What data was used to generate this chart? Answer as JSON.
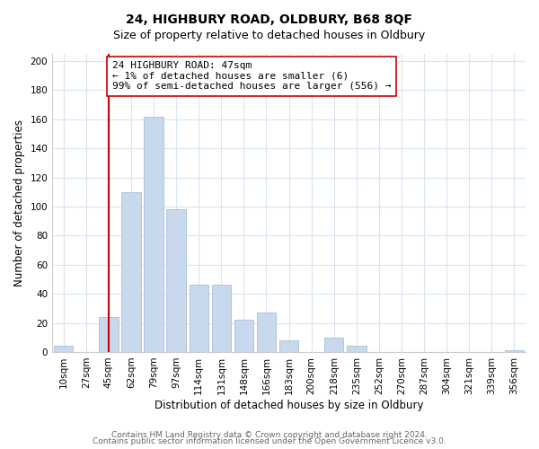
{
  "title": "24, HIGHBURY ROAD, OLDBURY, B68 8QF",
  "subtitle": "Size of property relative to detached houses in Oldbury",
  "xlabel": "Distribution of detached houses by size in Oldbury",
  "ylabel": "Number of detached properties",
  "bar_labels": [
    "10sqm",
    "27sqm",
    "45sqm",
    "62sqm",
    "79sqm",
    "97sqm",
    "114sqm",
    "131sqm",
    "148sqm",
    "166sqm",
    "183sqm",
    "200sqm",
    "218sqm",
    "235sqm",
    "252sqm",
    "270sqm",
    "287sqm",
    "304sqm",
    "321sqm",
    "339sqm",
    "356sqm"
  ],
  "bar_values": [
    4,
    0,
    24,
    110,
    162,
    98,
    46,
    46,
    22,
    27,
    8,
    0,
    10,
    4,
    0,
    0,
    0,
    0,
    0,
    0,
    1
  ],
  "bar_color": "#c8d9ee",
  "bar_edge_color": "#aabdd8",
  "vline_x_index": 2,
  "vline_color": "#cc0000",
  "annotation_line1": "24 HIGHBURY ROAD: 47sqm",
  "annotation_line2": "← 1% of detached houses are smaller (6)",
  "annotation_line3": "99% of semi-detached houses are larger (556) →",
  "annotation_box_color": "#ffffff",
  "annotation_box_edge_color": "#cc0000",
  "ylim": [
    0,
    205
  ],
  "yticks": [
    0,
    20,
    40,
    60,
    80,
    100,
    120,
    140,
    160,
    180,
    200
  ],
  "footer1": "Contains HM Land Registry data © Crown copyright and database right 2024.",
  "footer2": "Contains public sector information licensed under the Open Government Licence v3.0.",
  "bg_color": "#ffffff",
  "grid_color": "#d8e4f0",
  "title_fontsize": 10,
  "subtitle_fontsize": 9,
  "axis_label_fontsize": 8.5,
  "tick_fontsize": 7.5,
  "annotation_fontsize": 8,
  "footer_fontsize": 6.5
}
